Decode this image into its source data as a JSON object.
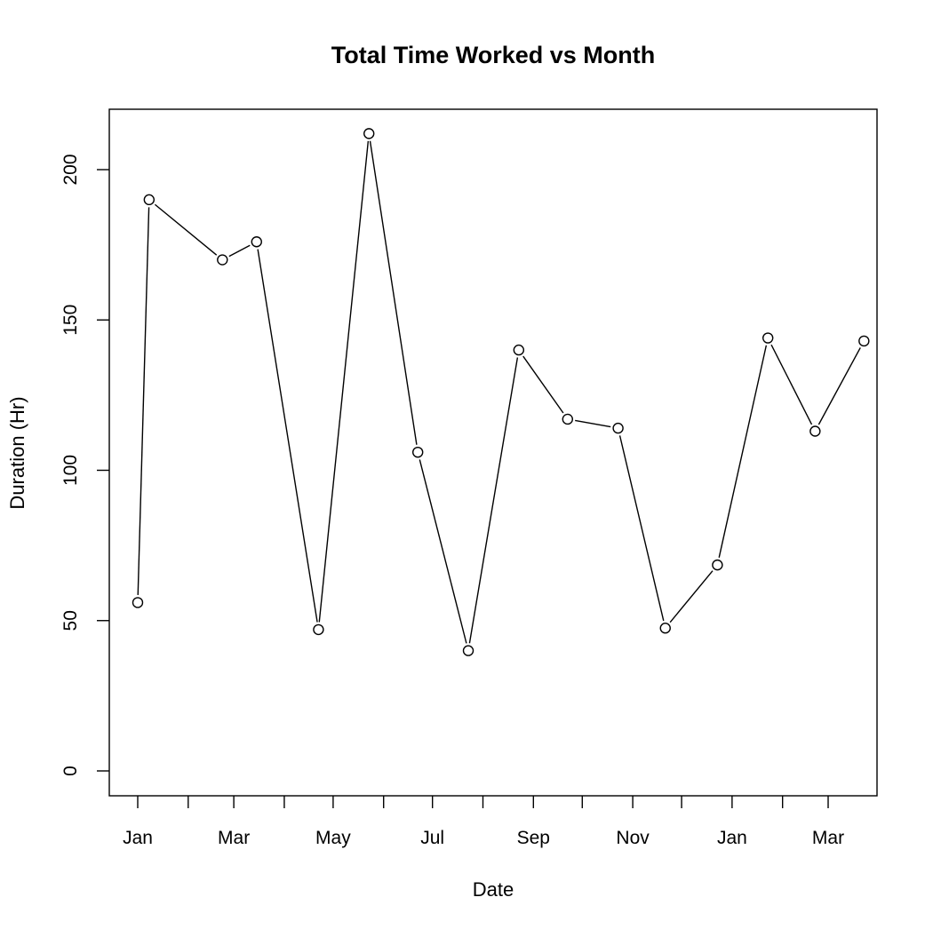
{
  "chart_data": {
    "type": "line",
    "title": "Total Time Worked vs Month",
    "xlabel": "Date",
    "ylabel": "Duration (Hr)",
    "x_tick_labels": [
      "Jan",
      "",
      "Mar",
      "",
      "May",
      "",
      "Jul",
      "",
      "Sep",
      "",
      "Nov",
      "",
      "Jan",
      "",
      "Mar"
    ],
    "y_ticks": [
      0,
      50,
      100,
      150,
      200
    ],
    "y_tick_labels": [
      "0",
      "50",
      "100",
      "150",
      "200"
    ],
    "ylim": [
      -8,
      220
    ],
    "marker": "open-circle",
    "grid": false,
    "series": [
      {
        "x": [
          "2013-01-01",
          "2013-01-08",
          "2013-02-22",
          "2013-03-15",
          "2013-04-22",
          "2013-05-23",
          "2013-06-22",
          "2013-07-23",
          "2013-08-23",
          "2013-09-22",
          "2013-10-23",
          "2013-11-21",
          "2013-12-23",
          "2014-01-23",
          "2014-02-21",
          "2014-03-23"
        ],
        "values": [
          56,
          190,
          170,
          176,
          47,
          212,
          106,
          40,
          140,
          117,
          114,
          47.5,
          68.5,
          144,
          113,
          143
        ]
      }
    ]
  }
}
